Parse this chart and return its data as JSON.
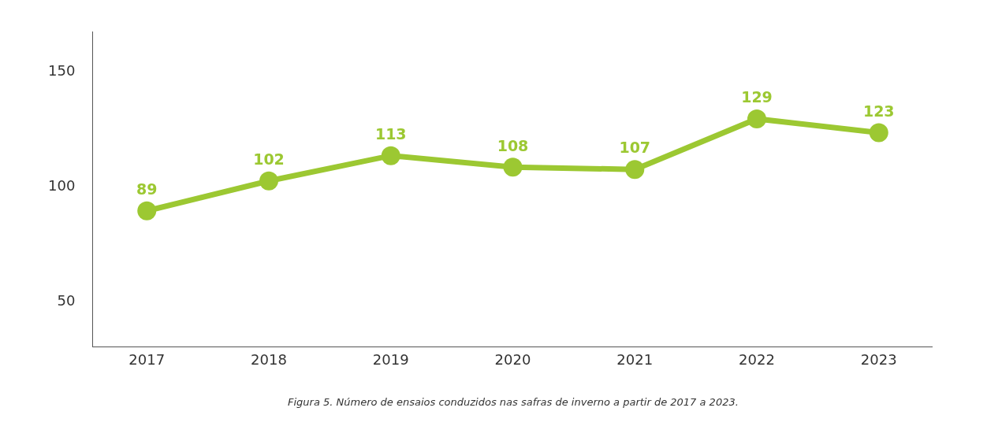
{
  "chart_data": {
    "type": "line",
    "categories": [
      "2017",
      "2018",
      "2019",
      "2020",
      "2021",
      "2022",
      "2023"
    ],
    "series": [
      {
        "color": "#9cc832",
        "values": [
          89,
          102,
          113,
          108,
          107,
          129,
          123
        ]
      }
    ],
    "ylim": [
      30,
      167
    ],
    "yticks": [
      50,
      100,
      150
    ],
    "marker": "circle",
    "line_style": "solid",
    "data_labels": true,
    "annotations": [
      "Figura 5. Número de ensaios conduzidos nas safras de inverno a partir de 2017 a 2023."
    ]
  }
}
